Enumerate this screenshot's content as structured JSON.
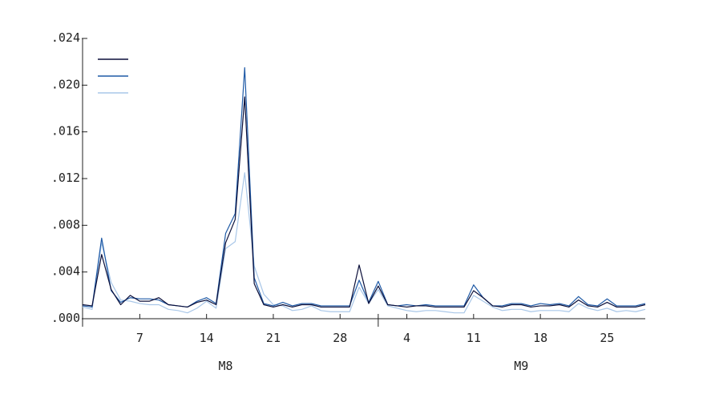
{
  "chart_data": {
    "type": "line",
    "title": "",
    "xlabel": "",
    "ylabel": "",
    "ylim": [
      0,
      0.024
    ],
    "y_ticks": [
      ".000",
      ".004",
      ".008",
      ".012",
      ".016",
      ".020",
      ".024"
    ],
    "y_tick_values": [
      0,
      0.004,
      0.008,
      0.012,
      0.016,
      0.02,
      0.024
    ],
    "x_tick_labels": [
      "7",
      "14",
      "21",
      "28",
      "4",
      "11",
      "18",
      "25"
    ],
    "x_tick_indices": [
      6,
      13,
      20,
      27,
      34,
      41,
      48,
      55
    ],
    "x_group_labels": [
      "M8",
      "M9"
    ],
    "x_group_center_indices": [
      15,
      46
    ],
    "x_group_divider_index": 31,
    "n_points": 60,
    "legend": "top-left",
    "grid": false,
    "series": [
      {
        "color": "#0b0f3a",
        "values": [
          0.0012,
          0.0011,
          0.0055,
          0.0025,
          0.0012,
          0.002,
          0.0015,
          0.0015,
          0.0018,
          0.0012,
          0.0011,
          0.001,
          0.0014,
          0.0016,
          0.0012,
          0.0065,
          0.0085,
          0.019,
          0.003,
          0.0012,
          0.001,
          0.0012,
          0.001,
          0.0012,
          0.0012,
          0.001,
          0.001,
          0.001,
          0.001,
          0.0046,
          0.0013,
          0.0028,
          0.0012,
          0.0011,
          0.001,
          0.0011,
          0.0011,
          0.001,
          0.001,
          0.001,
          0.001,
          0.0024,
          0.0018,
          0.0011,
          0.001,
          0.0012,
          0.0012,
          0.001,
          0.0011,
          0.0011,
          0.0012,
          0.001,
          0.0016,
          0.0011,
          0.001,
          0.0014,
          0.001,
          0.001,
          0.001,
          0.0012
        ]
      },
      {
        "color": "#1f5aa6",
        "values": [
          0.0011,
          0.001,
          0.0069,
          0.0024,
          0.0014,
          0.0018,
          0.0017,
          0.0017,
          0.0016,
          0.0012,
          0.0011,
          0.001,
          0.0015,
          0.0018,
          0.0013,
          0.0073,
          0.009,
          0.0215,
          0.0035,
          0.0013,
          0.0011,
          0.0014,
          0.0011,
          0.0013,
          0.0013,
          0.0011,
          0.0011,
          0.0011,
          0.0011,
          0.0033,
          0.0014,
          0.0032,
          0.0012,
          0.0011,
          0.0012,
          0.0011,
          0.0012,
          0.0011,
          0.0011,
          0.0011,
          0.0011,
          0.0029,
          0.0018,
          0.0011,
          0.0011,
          0.0013,
          0.0013,
          0.0011,
          0.0013,
          0.0012,
          0.0013,
          0.0011,
          0.0019,
          0.0012,
          0.0011,
          0.0017,
          0.0011,
          0.0011,
          0.0011,
          0.0013
        ]
      },
      {
        "color": "#a9c7e8",
        "values": [
          0.001,
          0.0008,
          0.0065,
          0.0031,
          0.0016,
          0.0015,
          0.0013,
          0.0012,
          0.0012,
          0.0008,
          0.0007,
          0.0005,
          0.0009,
          0.0015,
          0.0009,
          0.006,
          0.0066,
          0.0125,
          0.0045,
          0.0021,
          0.0012,
          0.0011,
          0.0007,
          0.0008,
          0.0011,
          0.0007,
          0.0006,
          0.0006,
          0.0006,
          0.0027,
          0.0013,
          0.0025,
          0.0011,
          0.0009,
          0.0007,
          0.0006,
          0.0007,
          0.0007,
          0.0006,
          0.0005,
          0.0005,
          0.002,
          0.0015,
          0.001,
          0.0007,
          0.0008,
          0.0008,
          0.0006,
          0.0007,
          0.0007,
          0.0007,
          0.0006,
          0.0013,
          0.0009,
          0.0007,
          0.0009,
          0.0006,
          0.0007,
          0.0006,
          0.0008
        ]
      }
    ]
  }
}
